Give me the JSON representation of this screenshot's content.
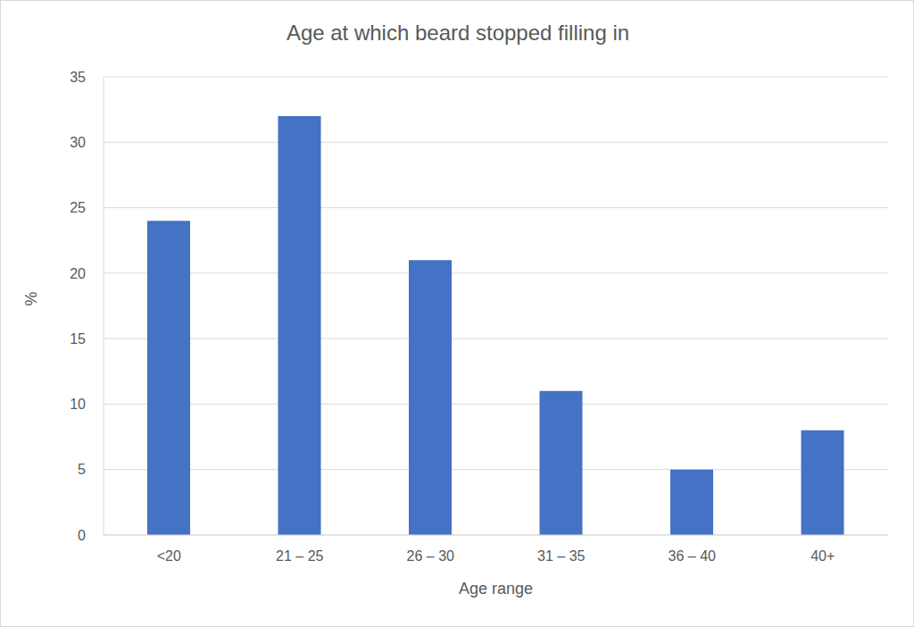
{
  "chart_data": {
    "type": "bar",
    "title": "Age at which beard stopped filling in",
    "x_label": "Age range",
    "y_label": "%",
    "categories": [
      "<20",
      "21 – 25",
      "26 – 30",
      "31 – 35",
      "36 – 40",
      "40+"
    ],
    "values": [
      24,
      32,
      21,
      11,
      5,
      8
    ],
    "color": "#4472c4",
    "ylim": [
      0,
      35
    ],
    "yticks": [
      0,
      5,
      10,
      15,
      20,
      25,
      30,
      35
    ],
    "grid": true
  }
}
